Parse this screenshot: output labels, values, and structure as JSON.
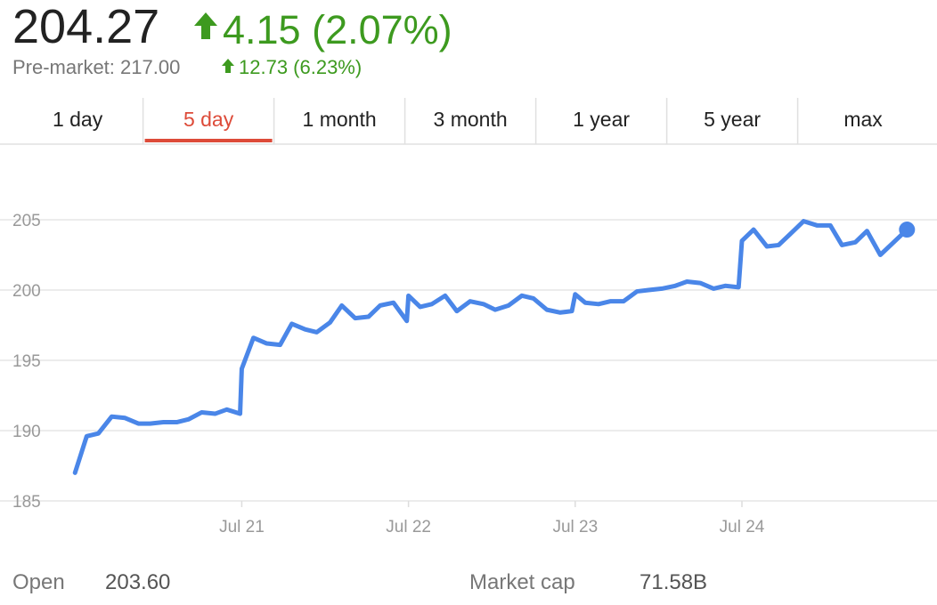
{
  "header": {
    "price": "204.27",
    "change": "4.15 (2.07%)",
    "premarket": "Pre-market: 217.00",
    "premarket_change": "12.73 (6.23%)"
  },
  "tabs": {
    "items": [
      "1 day",
      "5 day",
      "1 month",
      "3 month",
      "1 year",
      "5 year",
      "max"
    ],
    "active": 1
  },
  "chart_data": {
    "type": "line",
    "x": [
      0,
      0.07,
      0.14,
      0.22,
      0.3,
      0.38,
      0.45,
      0.53,
      0.61,
      0.68,
      0.76,
      0.84,
      0.91,
      0.99,
      1.0,
      1.07,
      1.15,
      1.23,
      1.3,
      1.38,
      1.45,
      1.53,
      1.6,
      1.68,
      1.76,
      1.83,
      1.91,
      1.99,
      2.0,
      2.07,
      2.14,
      2.22,
      2.29,
      2.37,
      2.45,
      2.52,
      2.6,
      2.68,
      2.75,
      2.83,
      2.91,
      2.98,
      3.0,
      3.06,
      3.14,
      3.21,
      3.29,
      3.37,
      3.44,
      3.52,
      3.6,
      3.67,
      3.75,
      3.83,
      3.9,
      3.98,
      4.0,
      4.07,
      4.15,
      4.22,
      4.3,
      4.37,
      4.45,
      4.53,
      4.6,
      4.68,
      4.75,
      4.83,
      4.91,
      4.99
    ],
    "series": [
      {
        "color": "#4a86e8",
        "values": [
          187.0,
          189.6,
          189.8,
          191.0,
          190.9,
          190.5,
          190.5,
          190.6,
          190.6,
          190.8,
          191.3,
          191.2,
          191.5,
          191.2,
          194.4,
          196.6,
          196.2,
          196.1,
          197.6,
          197.2,
          197.0,
          197.7,
          198.9,
          198.0,
          198.1,
          198.9,
          199.1,
          197.8,
          199.6,
          198.8,
          199.0,
          199.6,
          198.5,
          199.2,
          199.0,
          198.6,
          198.9,
          199.6,
          199.4,
          198.6,
          198.4,
          198.5,
          199.7,
          199.1,
          199.0,
          199.2,
          199.2,
          199.9,
          200.0,
          200.1,
          200.3,
          200.6,
          200.5,
          200.1,
          200.3,
          200.2,
          203.5,
          204.3,
          203.1,
          203.2,
          204.1,
          204.9,
          204.6,
          204.6,
          203.2,
          203.4,
          204.2,
          202.5,
          203.4,
          204.3
        ]
      }
    ],
    "xlim": [
      -0.45,
      5.17
    ],
    "xticks": [
      {
        "value": 1,
        "label": "Jul 21"
      },
      {
        "value": 2,
        "label": "Jul 22"
      },
      {
        "value": 3,
        "label": "Jul 23"
      },
      {
        "value": 4,
        "label": "Jul 24"
      }
    ],
    "ylim": [
      183,
      210
    ],
    "yticks": [
      185,
      190,
      195,
      200,
      205
    ],
    "grid": true
  },
  "stats": [
    {
      "label": "Open",
      "value": "203.60"
    },
    {
      "label": "Market cap",
      "value": "71.58B"
    }
  ]
}
